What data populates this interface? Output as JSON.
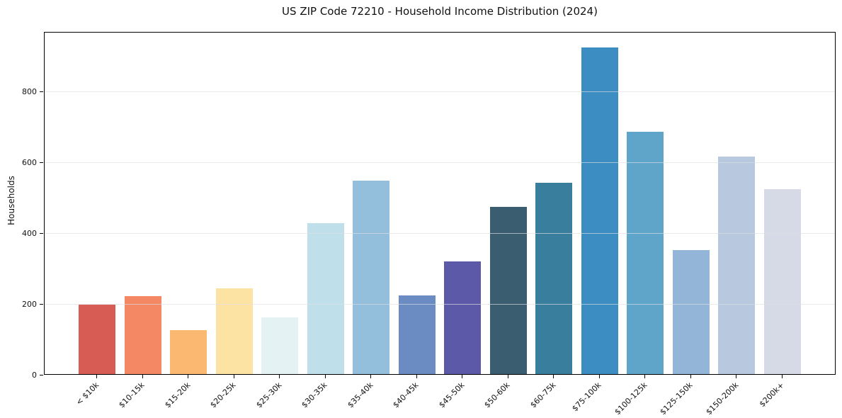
{
  "figure": {
    "title": "US ZIP Code 72210 - Household Income Distribution (2024)"
  },
  "chart_data": {
    "type": "bar",
    "title": "US ZIP Code 72210 - Household Income Distribution (2024)",
    "xlabel": "",
    "ylabel": "Households",
    "categories": [
      "< $10k",
      "$10-15k",
      "$15-20k",
      "$20-25k",
      "$25-30k",
      "$30-35k",
      "$35-40k",
      "$40-45k",
      "$45-50k",
      "$50-60k",
      "$60-75k",
      "$75-100k",
      "$100-125k",
      "$125-150k",
      "$150-200k",
      "$200k+"
    ],
    "values": [
      196,
      221,
      124,
      242,
      160,
      427,
      547,
      223,
      318,
      472,
      541,
      922,
      684,
      350,
      614,
      523
    ],
    "bar_colors": [
      "#d65c54",
      "#f48865",
      "#fbb870",
      "#fde3a3",
      "#e5f2f3",
      "#bfdfea",
      "#93bedc",
      "#6b8cc3",
      "#5c59a9",
      "#3a5e6f",
      "#3a7e9e",
      "#3b8dc2",
      "#5fa5c9",
      "#93b6d8",
      "#b7c8df",
      "#d6d9e6"
    ],
    "yticks": [
      0,
      200,
      400,
      600,
      800
    ],
    "ylim": [
      0,
      968
    ],
    "grid": true,
    "grid_axis": "y",
    "legend": "none",
    "axis_color": "#000000",
    "background_color": "#ffffff"
  }
}
